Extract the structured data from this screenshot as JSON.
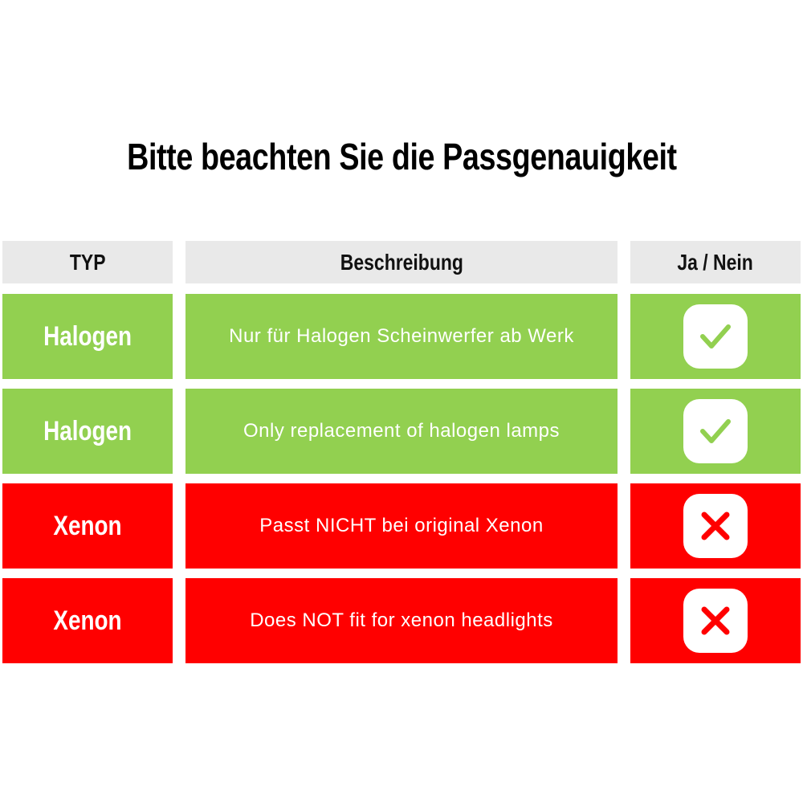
{
  "title": "Bitte beachten Sie die Passgenauigkeit",
  "colors": {
    "ok": "#92d050",
    "not_ok": "#ff0000",
    "header": "#e9e9e9"
  },
  "table": {
    "headers": [
      "TYP",
      "Beschreibung",
      "Ja / Nein"
    ],
    "rows": [
      {
        "type": "Halogen",
        "description": "Nur für Halogen Scheinwerfer ab Werk",
        "fits": true,
        "icon": "check-icon"
      },
      {
        "type": "Halogen",
        "description": "Only replacement of halogen lamps",
        "fits": true,
        "icon": "check-icon"
      },
      {
        "type": "Xenon",
        "description": "Passt NICHT bei original Xenon",
        "fits": false,
        "icon": "cross-icon"
      },
      {
        "type": "Xenon",
        "description": "Does NOT fit for xenon headlights",
        "fits": false,
        "icon": "cross-icon"
      }
    ]
  }
}
